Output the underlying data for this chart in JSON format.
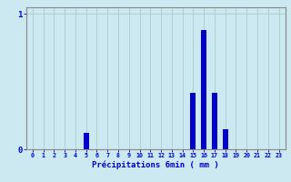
{
  "title": "",
  "xlabel": "Précipitations 6min ( mm )",
  "ylabel": "",
  "background_color": "#cce8f0",
  "bar_color": "#0000cc",
  "grid_color": "#aacccc",
  "axis_color": "#888888",
  "text_color": "#0000cc",
  "categories": [
    0,
    1,
    2,
    3,
    4,
    5,
    6,
    7,
    8,
    9,
    10,
    11,
    12,
    13,
    14,
    15,
    16,
    17,
    18,
    19,
    20,
    21,
    22,
    23
  ],
  "values": [
    0,
    0,
    0,
    0,
    0,
    0.12,
    0,
    0,
    0,
    0,
    0,
    0,
    0,
    0,
    0,
    0.42,
    0.88,
    0.42,
    0.15,
    0,
    0,
    0,
    0,
    0
  ],
  "ylim": [
    0,
    1.05
  ],
  "yticks": [
    0,
    1
  ],
  "y0_label": "0",
  "y1_label": "1"
}
